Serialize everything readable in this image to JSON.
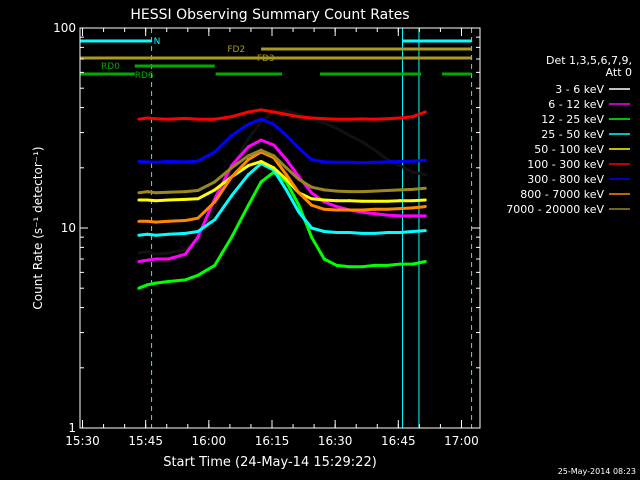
{
  "chart_data": {
    "type": "line",
    "title": "HESSI Observing Summary Count Rates",
    "xlabel": "Start Time (24-May-14 15:29:22)",
    "ylabel": "Count Rate (s⁻¹ detector⁻¹)",
    "yscale": "log",
    "xlim_minutes": [
      0,
      95
    ],
    "ylim": [
      1,
      100
    ],
    "x_ticks": [
      "15:30",
      "15:45",
      "16:00",
      "16:15",
      "16:30",
      "16:45",
      "17:00"
    ],
    "x_tick_minutes": [
      0.6,
      15.6,
      30.6,
      45.6,
      60.6,
      75.6,
      90.6
    ],
    "y_ticks": [
      "1",
      "10",
      "100"
    ],
    "y_tick_values": [
      1,
      10,
      100
    ],
    "legend_title": [
      "Det 1,3,5,6,7,9,",
      "Att 0"
    ],
    "legend_position": "right",
    "series": [
      {
        "name": "3 - 6 keV",
        "color": "#000000",
        "values": [
          7.5,
          7.6,
          7.4,
          7.5,
          7.8,
          8.6,
          12.5,
          20.0,
          28.0,
          34.0,
          38.0,
          38.5,
          37.0,
          35.0,
          33.5,
          31.5,
          29.0,
          27.0,
          24.5,
          22.0,
          20.5,
          19.0,
          18.5
        ]
      },
      {
        "name": "6 - 12 keV",
        "color": "#ff00ff",
        "values": [
          6.8,
          6.9,
          7.0,
          7.0,
          7.4,
          9.0,
          14.0,
          20.5,
          25.5,
          27.5,
          26.0,
          22.0,
          18.0,
          15.0,
          13.5,
          12.8,
          12.3,
          12.0,
          11.8,
          11.6,
          11.5,
          11.5,
          11.5
        ]
      },
      {
        "name": "12 - 25 keV",
        "color": "#00ff00",
        "values": [
          5.0,
          5.2,
          5.3,
          5.4,
          5.5,
          5.8,
          6.5,
          9.0,
          13.0,
          17.0,
          19.0,
          17.0,
          13.0,
          9.0,
          7.0,
          6.5,
          6.4,
          6.4,
          6.5,
          6.5,
          6.6,
          6.6,
          6.8
        ]
      },
      {
        "name": "25 - 50 keV",
        "color": "#00ffff",
        "values": [
          9.2,
          9.3,
          9.2,
          9.3,
          9.4,
          9.6,
          11.0,
          14.5,
          18.5,
          21.0,
          19.5,
          15.5,
          12.0,
          10.0,
          9.6,
          9.5,
          9.5,
          9.4,
          9.4,
          9.5,
          9.5,
          9.6,
          9.7
        ]
      },
      {
        "name": "50 - 100 keV",
        "color": "#ffff00",
        "values": [
          13.8,
          13.8,
          13.7,
          13.8,
          13.9,
          14.0,
          15.5,
          18.0,
          20.5,
          21.5,
          20.0,
          17.5,
          15.0,
          14.0,
          13.8,
          13.7,
          13.7,
          13.6,
          13.6,
          13.6,
          13.7,
          13.7,
          13.8
        ]
      },
      {
        "name": "100 - 300 keV",
        "color": "#ff0000",
        "values": [
          35.0,
          35.5,
          35.2,
          35.0,
          35.3,
          35.0,
          35.0,
          36.0,
          38.0,
          39.0,
          38.0,
          37.0,
          36.0,
          35.5,
          35.2,
          35.0,
          35.0,
          35.1,
          35.0,
          35.2,
          35.5,
          36.0,
          38.0
        ]
      },
      {
        "name": "300 - 800 keV",
        "color": "#0000ff",
        "values": [
          21.5,
          21.4,
          21.3,
          21.5,
          21.4,
          21.6,
          24.0,
          29.0,
          33.0,
          35.0,
          33.0,
          29.0,
          25.0,
          22.0,
          21.4,
          21.3,
          21.3,
          21.2,
          21.3,
          21.4,
          21.5,
          21.6,
          21.8
        ]
      },
      {
        "name": "800 - 7000 keV",
        "color": "#ff8800",
        "values": [
          10.8,
          10.8,
          10.7,
          10.8,
          10.9,
          11.2,
          13.5,
          18.0,
          22.0,
          24.0,
          22.5,
          18.5,
          15.0,
          13.0,
          12.4,
          12.3,
          12.3,
          12.3,
          12.4,
          12.4,
          12.5,
          12.6,
          12.8
        ]
      },
      {
        "name": "7000 - 20000 keV",
        "color": "#998822",
        "values": [
          15.0,
          15.2,
          15.0,
          15.1,
          15.2,
          15.4,
          17.0,
          20.0,
          23.0,
          24.5,
          23.0,
          20.0,
          17.5,
          16.0,
          15.5,
          15.3,
          15.2,
          15.2,
          15.3,
          15.4,
          15.5,
          15.6,
          15.8
        ]
      }
    ],
    "x_minutes": [
      14,
      16,
      18,
      21,
      25,
      28,
      32,
      36,
      40,
      43,
      46,
      49,
      52,
      55,
      58,
      61,
      64,
      67,
      70,
      73,
      76,
      79,
      82
    ],
    "state_bars": [
      {
        "label": "N",
        "color": "#00ffff",
        "segments": [
          [
            0,
            17
          ],
          [
            76.6,
            93
          ]
        ]
      },
      {
        "label": "FD2",
        "color": "#aa9922",
        "segments": [
          [
            43,
            93
          ]
        ]
      },
      {
        "label": "FD3",
        "color": "#aa9922",
        "segments": [
          [
            0,
            93
          ]
        ]
      },
      {
        "label": "RD0",
        "color": "#00aa00",
        "segments": [
          [
            13,
            32
          ]
        ]
      },
      {
        "label": "RD6",
        "color": "#00aa00",
        "segments": [
          [
            0,
            13
          ],
          [
            32.2,
            48
          ],
          [
            57,
            81
          ],
          [
            86,
            93
          ]
        ]
      }
    ],
    "vertical_lines": [
      {
        "minute": 0,
        "color": "#00ffff",
        "style": "solid"
      },
      {
        "minute": 17,
        "color": "#00ffff",
        "style": "dashed"
      },
      {
        "minute": 76.6,
        "color": "#00ffff",
        "style": "solid"
      },
      {
        "minute": 80.5,
        "color": "#00ffff",
        "style": "solid"
      },
      {
        "minute": 93,
        "color": "#00ffff",
        "style": "dashed"
      }
    ]
  },
  "footer": {
    "timestamp": "25-May-2014 08:23"
  }
}
